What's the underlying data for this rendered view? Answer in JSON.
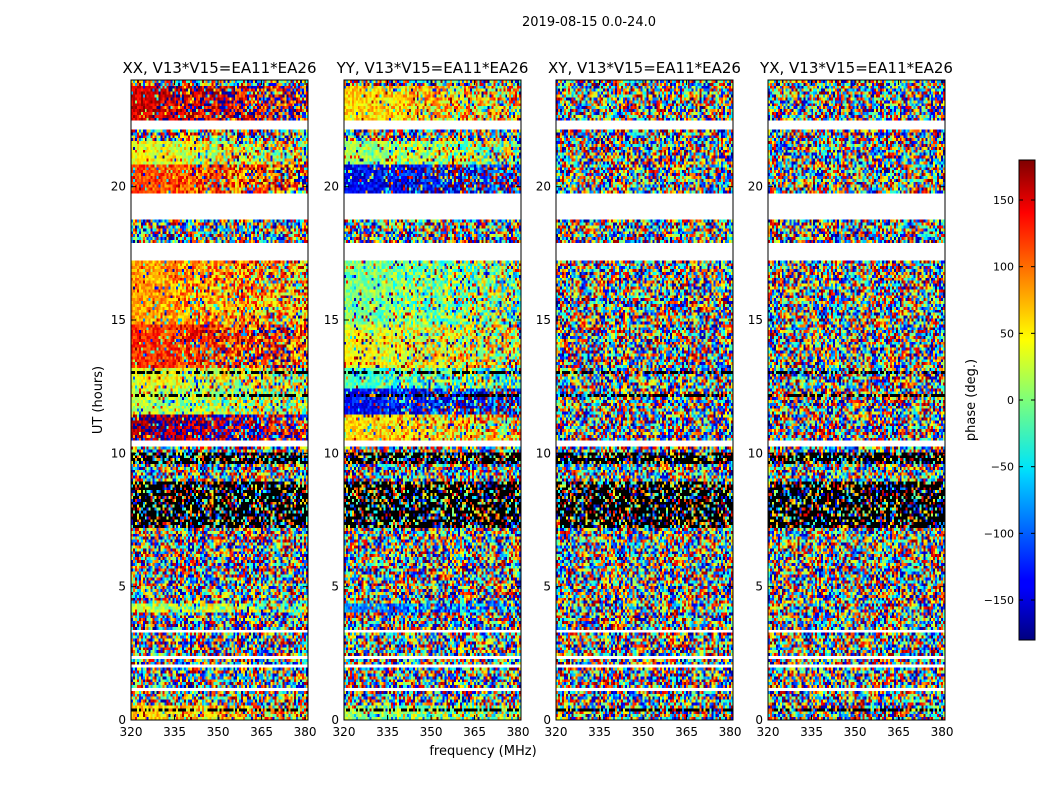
{
  "figure": {
    "suptitle": "2019-08-15 0.0-24.0",
    "xlabel": "frequency (MHz)",
    "ylabel": "UT (hours)"
  },
  "chart_data": {
    "type": "heatmap",
    "title": "2019-08-15 0.0-24.0",
    "xlabel": "frequency (MHz)",
    "ylabel": "UT (hours)",
    "xlim": [
      320,
      381
    ],
    "ylim": [
      0,
      24
    ],
    "xticks": [
      320,
      335,
      350,
      365,
      380
    ],
    "yticks": [
      0,
      5,
      10,
      15,
      20
    ],
    "colormap": "jet",
    "panels": [
      {
        "title": "XX, V13*V15=EA11*EA26",
        "polarization": "XX"
      },
      {
        "title": "YY, V13*V15=EA11*EA26",
        "polarization": "YY"
      },
      {
        "title": "XY, V13*V15=EA11*EA26",
        "polarization": "XY"
      },
      {
        "title": "YX, V13*V15=EA11*EA26",
        "polarization": "YX"
      }
    ],
    "colorbar": {
      "label": "phase (deg.)",
      "range": [
        -180,
        180
      ],
      "ticks": [
        150,
        100,
        50,
        0,
        -50,
        -100,
        -150
      ],
      "tick_labels": [
        "150",
        "100",
        "50",
        "0",
        "−50",
        "−100",
        "−150"
      ]
    },
    "data_gaps_ut": [
      [
        1.05,
        1.25
      ],
      [
        2.0,
        2.1
      ],
      [
        2.3,
        2.45
      ],
      [
        3.3,
        3.4
      ],
      [
        10.3,
        10.5
      ],
      [
        17.2,
        17.9
      ],
      [
        18.8,
        19.7
      ],
      [
        22.1,
        22.5
      ]
    ],
    "flagged_ut": [
      [
        0.35,
        0.42
      ],
      [
        7.2,
        9.0
      ],
      [
        9.6,
        10.0
      ],
      [
        10.55,
        10.6
      ],
      [
        12.15,
        12.2
      ],
      [
        13.0,
        13.05
      ],
      [
        14.05,
        14.1
      ],
      [
        16.1,
        16.15
      ]
    ],
    "coherent_phase_regions": {
      "XX": [
        {
          "ut": [
            0.0,
            0.5
          ],
          "deg": 60
        },
        {
          "ut": [
            4.0,
            4.4
          ],
          "deg": 20
        },
        {
          "ut": [
            10.4,
            11.4
          ],
          "deg": 170
        },
        {
          "ut": [
            11.4,
            12.4
          ],
          "deg": 20
        },
        {
          "ut": [
            12.4,
            13.2
          ],
          "deg": 40
        },
        {
          "ut": [
            13.2,
            14.8
          ],
          "deg": 120
        },
        {
          "ut": [
            14.8,
            17.2
          ],
          "deg": 80
        },
        {
          "ut": [
            19.7,
            20.8
          ],
          "deg": 110
        },
        {
          "ut": [
            20.8,
            21.7
          ],
          "deg": 40
        },
        {
          "ut": [
            22.5,
            23.8
          ],
          "deg": 150
        }
      ],
      "YY": [
        {
          "ut": [
            0.0,
            0.5
          ],
          "deg": 10
        },
        {
          "ut": [
            4.0,
            4.4
          ],
          "deg": -90
        },
        {
          "ut": [
            10.4,
            11.4
          ],
          "deg": 60
        },
        {
          "ut": [
            11.4,
            12.4
          ],
          "deg": -130
        },
        {
          "ut": [
            12.4,
            13.2
          ],
          "deg": -20
        },
        {
          "ut": [
            13.2,
            14.8
          ],
          "deg": 40
        },
        {
          "ut": [
            14.8,
            17.2
          ],
          "deg": 0
        },
        {
          "ut": [
            19.7,
            20.8
          ],
          "deg": -140
        },
        {
          "ut": [
            20.8,
            21.7
          ],
          "deg": 10
        },
        {
          "ut": [
            22.5,
            23.8
          ],
          "deg": 60
        }
      ],
      "XY": [],
      "YX": []
    }
  }
}
